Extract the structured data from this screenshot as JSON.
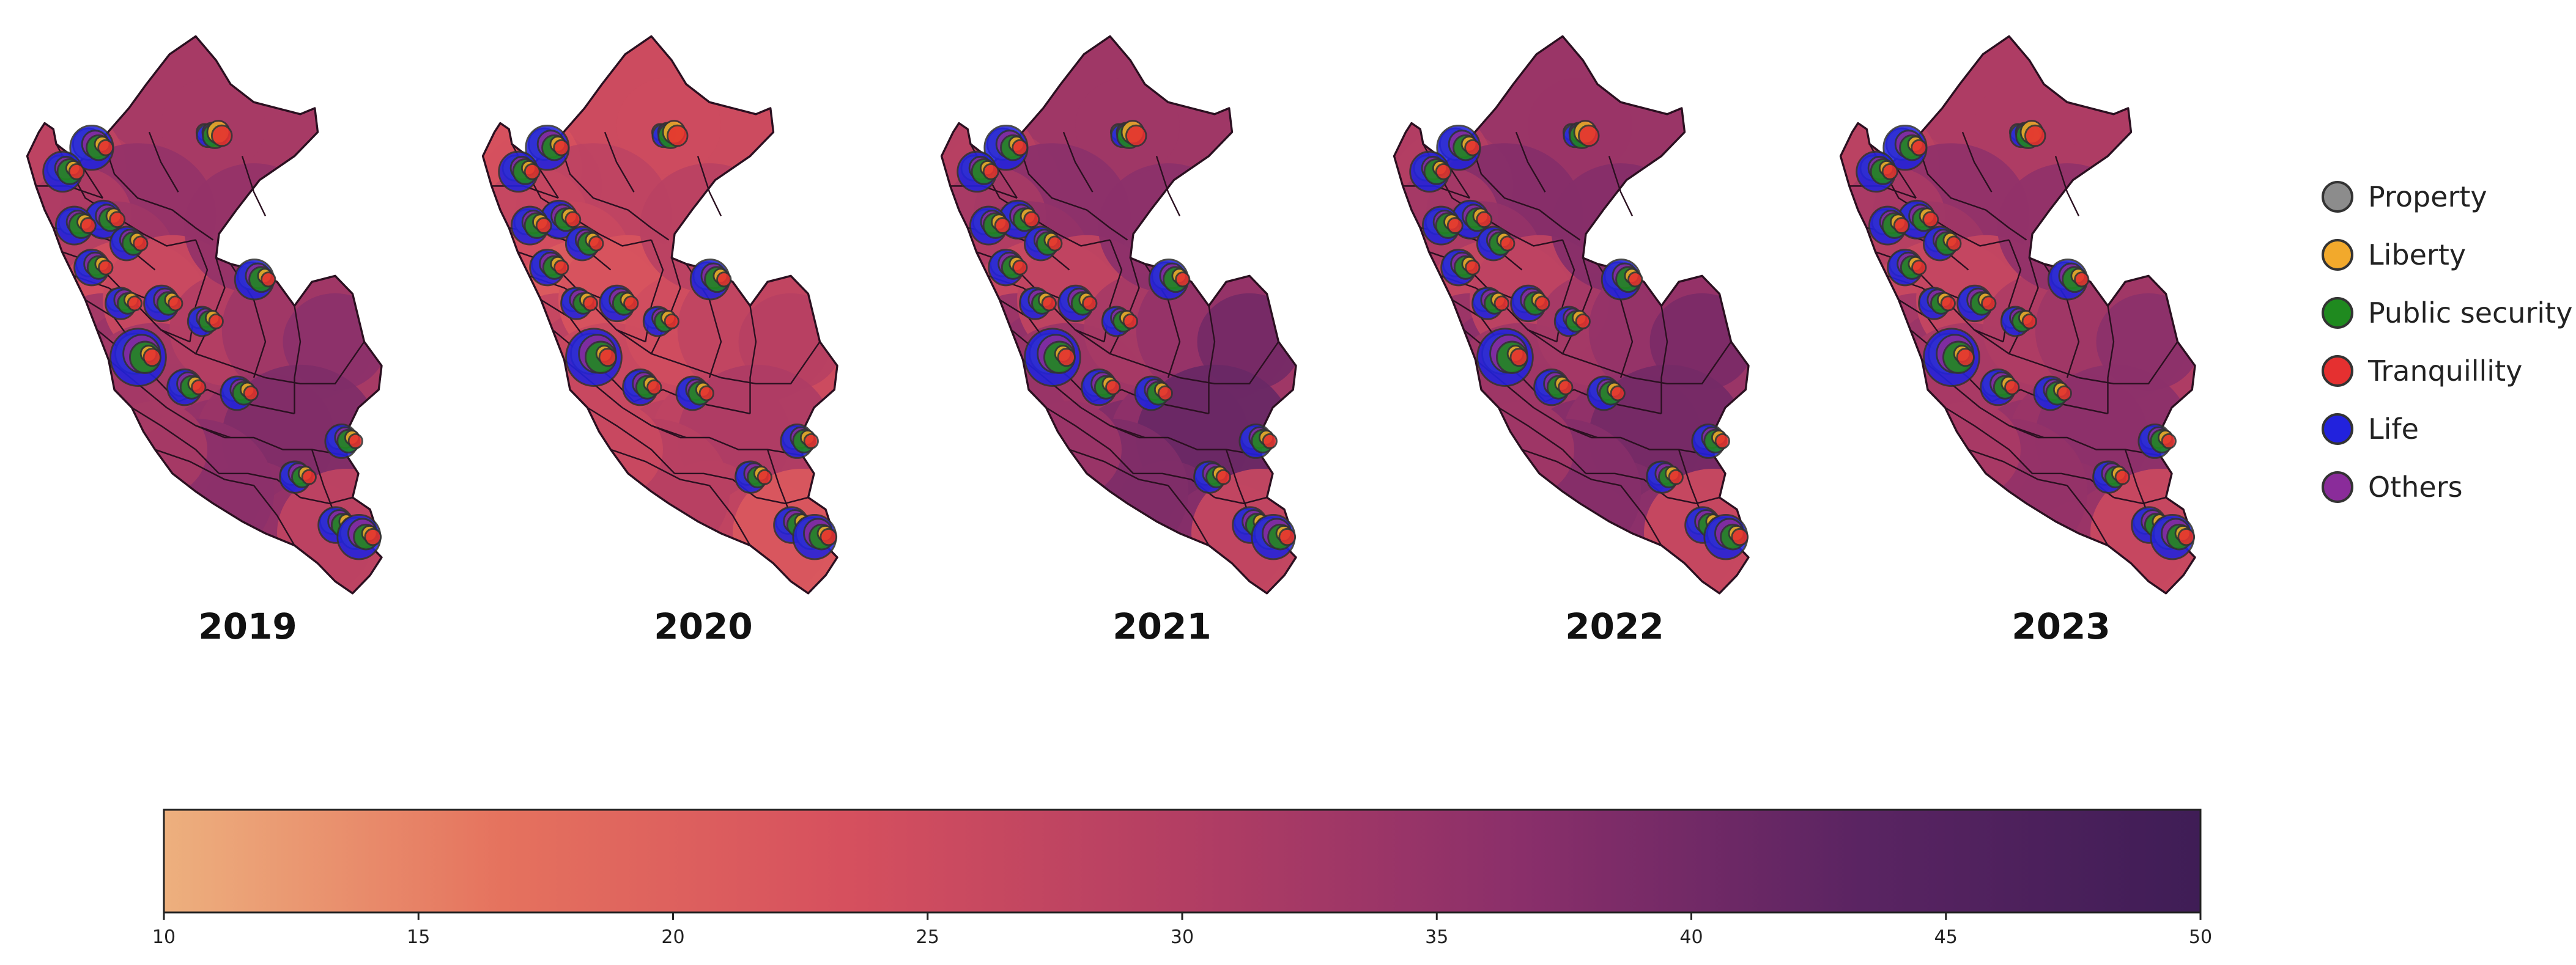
{
  "figure": {
    "panels": [
      {
        "year": "2019",
        "shades": [
          0.55,
          0.5,
          0.45,
          0.62,
          0.52,
          0.58,
          0.48,
          0.35,
          0.57,
          0.6,
          0.4,
          0.56,
          0.55,
          0.5,
          0.62,
          0.58,
          0.66,
          0.63,
          0.6,
          0.7,
          0.65,
          0.62,
          0.45,
          0.66,
          0.55
        ]
      },
      {
        "year": "2020",
        "shades": [
          0.38,
          0.4,
          0.33,
          0.45,
          0.42,
          0.4,
          0.35,
          0.28,
          0.42,
          0.46,
          0.32,
          0.4,
          0.4,
          0.36,
          0.47,
          0.44,
          0.48,
          0.46,
          0.45,
          0.52,
          0.48,
          0.44,
          0.3,
          0.48,
          0.4
        ]
      },
      {
        "year": "2021",
        "shades": [
          0.58,
          0.52,
          0.48,
          0.66,
          0.55,
          0.62,
          0.5,
          0.4,
          0.6,
          0.64,
          0.44,
          0.6,
          0.58,
          0.55,
          0.66,
          0.62,
          0.74,
          0.7,
          0.65,
          0.78,
          0.72,
          0.68,
          0.42,
          0.7,
          0.6
        ]
      },
      {
        "year": "2022",
        "shades": [
          0.6,
          0.55,
          0.5,
          0.68,
          0.56,
          0.62,
          0.52,
          0.42,
          0.6,
          0.66,
          0.45,
          0.58,
          0.58,
          0.56,
          0.68,
          0.62,
          0.72,
          0.68,
          0.64,
          0.74,
          0.7,
          0.66,
          0.4,
          0.68,
          0.58
        ]
      },
      {
        "year": "2023",
        "shades": [
          0.52,
          0.5,
          0.46,
          0.64,
          0.54,
          0.58,
          0.48,
          0.4,
          0.56,
          0.6,
          0.42,
          0.54,
          0.54,
          0.52,
          0.64,
          0.58,
          0.66,
          0.62,
          0.6,
          0.66,
          0.64,
          0.6,
          0.4,
          0.62,
          0.54
        ]
      }
    ],
    "legend": {
      "items": [
        {
          "label": "Property",
          "color": "#8c8c8c"
        },
        {
          "label": "Liberty",
          "color": "#f2a92c"
        },
        {
          "label": "Public security",
          "color": "#1f8a1f"
        },
        {
          "label": "Tranquillity",
          "color": "#e53030"
        },
        {
          "label": "Life",
          "color": "#2222dd"
        },
        {
          "label": "Others",
          "color": "#8a2c9a"
        }
      ]
    },
    "colorbar": {
      "min": 10,
      "max": 50,
      "ticks": [
        "10",
        "15",
        "20",
        "25",
        "30",
        "35",
        "40",
        "45",
        "50"
      ],
      "stops": [
        "#edb07e",
        "#e5725e",
        "#d6505e",
        "#b33e63",
        "#8a2f6a",
        "#5a2462",
        "#3f1d56"
      ]
    }
  }
}
